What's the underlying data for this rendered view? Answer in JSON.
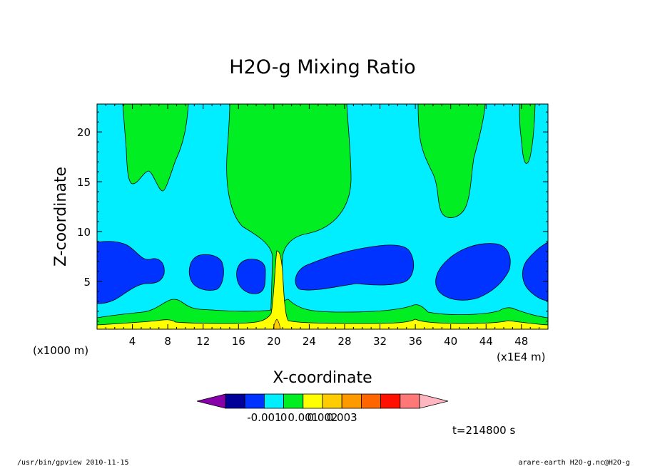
{
  "chart_data": {
    "type": "contour",
    "title": "H2O-g Mixing Ratio",
    "xlabel": "X-coordinate",
    "ylabel": "Z-coordinate",
    "x_unit_left": "(x1000 m)",
    "x_unit_right": "(x1E4 m)",
    "xlim": [
      0,
      51
    ],
    "ylim": [
      0.2,
      22.8
    ],
    "x_ticks": [
      4,
      8,
      12,
      16,
      20,
      24,
      28,
      32,
      36,
      40,
      44,
      48
    ],
    "y_ticks": [
      5,
      10,
      15,
      20
    ],
    "colorbar": {
      "colors": [
        "#8800aa",
        "#000099",
        "#0033ff",
        "#00eeff",
        "#00ee22",
        "#ffff00",
        "#ffcc00",
        "#ff9900",
        "#ff6600",
        "#ff1100",
        "#ff7777",
        "#ffb6c1"
      ],
      "tick_labels": [
        "-0.001",
        "0",
        "0.001",
        "0.002",
        "0.003"
      ]
    },
    "time_label": "t=214800 s",
    "colors": {
      "background_level": "#00eeff",
      "low_level": "#0033ff",
      "high_level": "#00ee22",
      "surface_level": "#ffff00",
      "surface_peak": "#ffcc00"
    }
  },
  "footer": {
    "left": "/usr/bin/gpview  2010-11-15",
    "right": "arare-earth_H2O-g.nc@H2O-g"
  }
}
